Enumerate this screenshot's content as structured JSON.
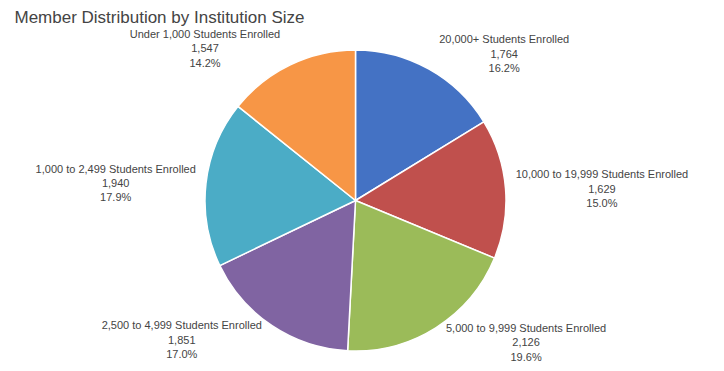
{
  "chart_data": {
    "type": "pie",
    "title": "Member Distribution by Institution Size",
    "categories": [
      "20,000+ Students Enrolled",
      "10,000 to 19,999 Students Enrolled",
      "5,000 to 9,999 Students Enrolled",
      "2,500 to 4,999 Students Enrolled",
      "1,000 to 2,499 Students Enrolled",
      "Under 1,000 Students Enrolled"
    ],
    "values": [
      1764,
      1629,
      2126,
      1851,
      1940,
      1547
    ],
    "value_labels": [
      "1,764",
      "1,629",
      "2,126",
      "1,851",
      "1,940",
      "1,547"
    ],
    "percentages": [
      16.2,
      15.0,
      19.6,
      17.0,
      17.9,
      14.2
    ],
    "percentage_labels": [
      "16.2%",
      "15.0%",
      "19.6%",
      "17.0%",
      "17.9%",
      "14.2%"
    ],
    "colors": [
      "#4472C4",
      "#C0504D",
      "#9BBB59",
      "#8064A2",
      "#4BACC6",
      "#F79646"
    ],
    "data_labels": true
  }
}
